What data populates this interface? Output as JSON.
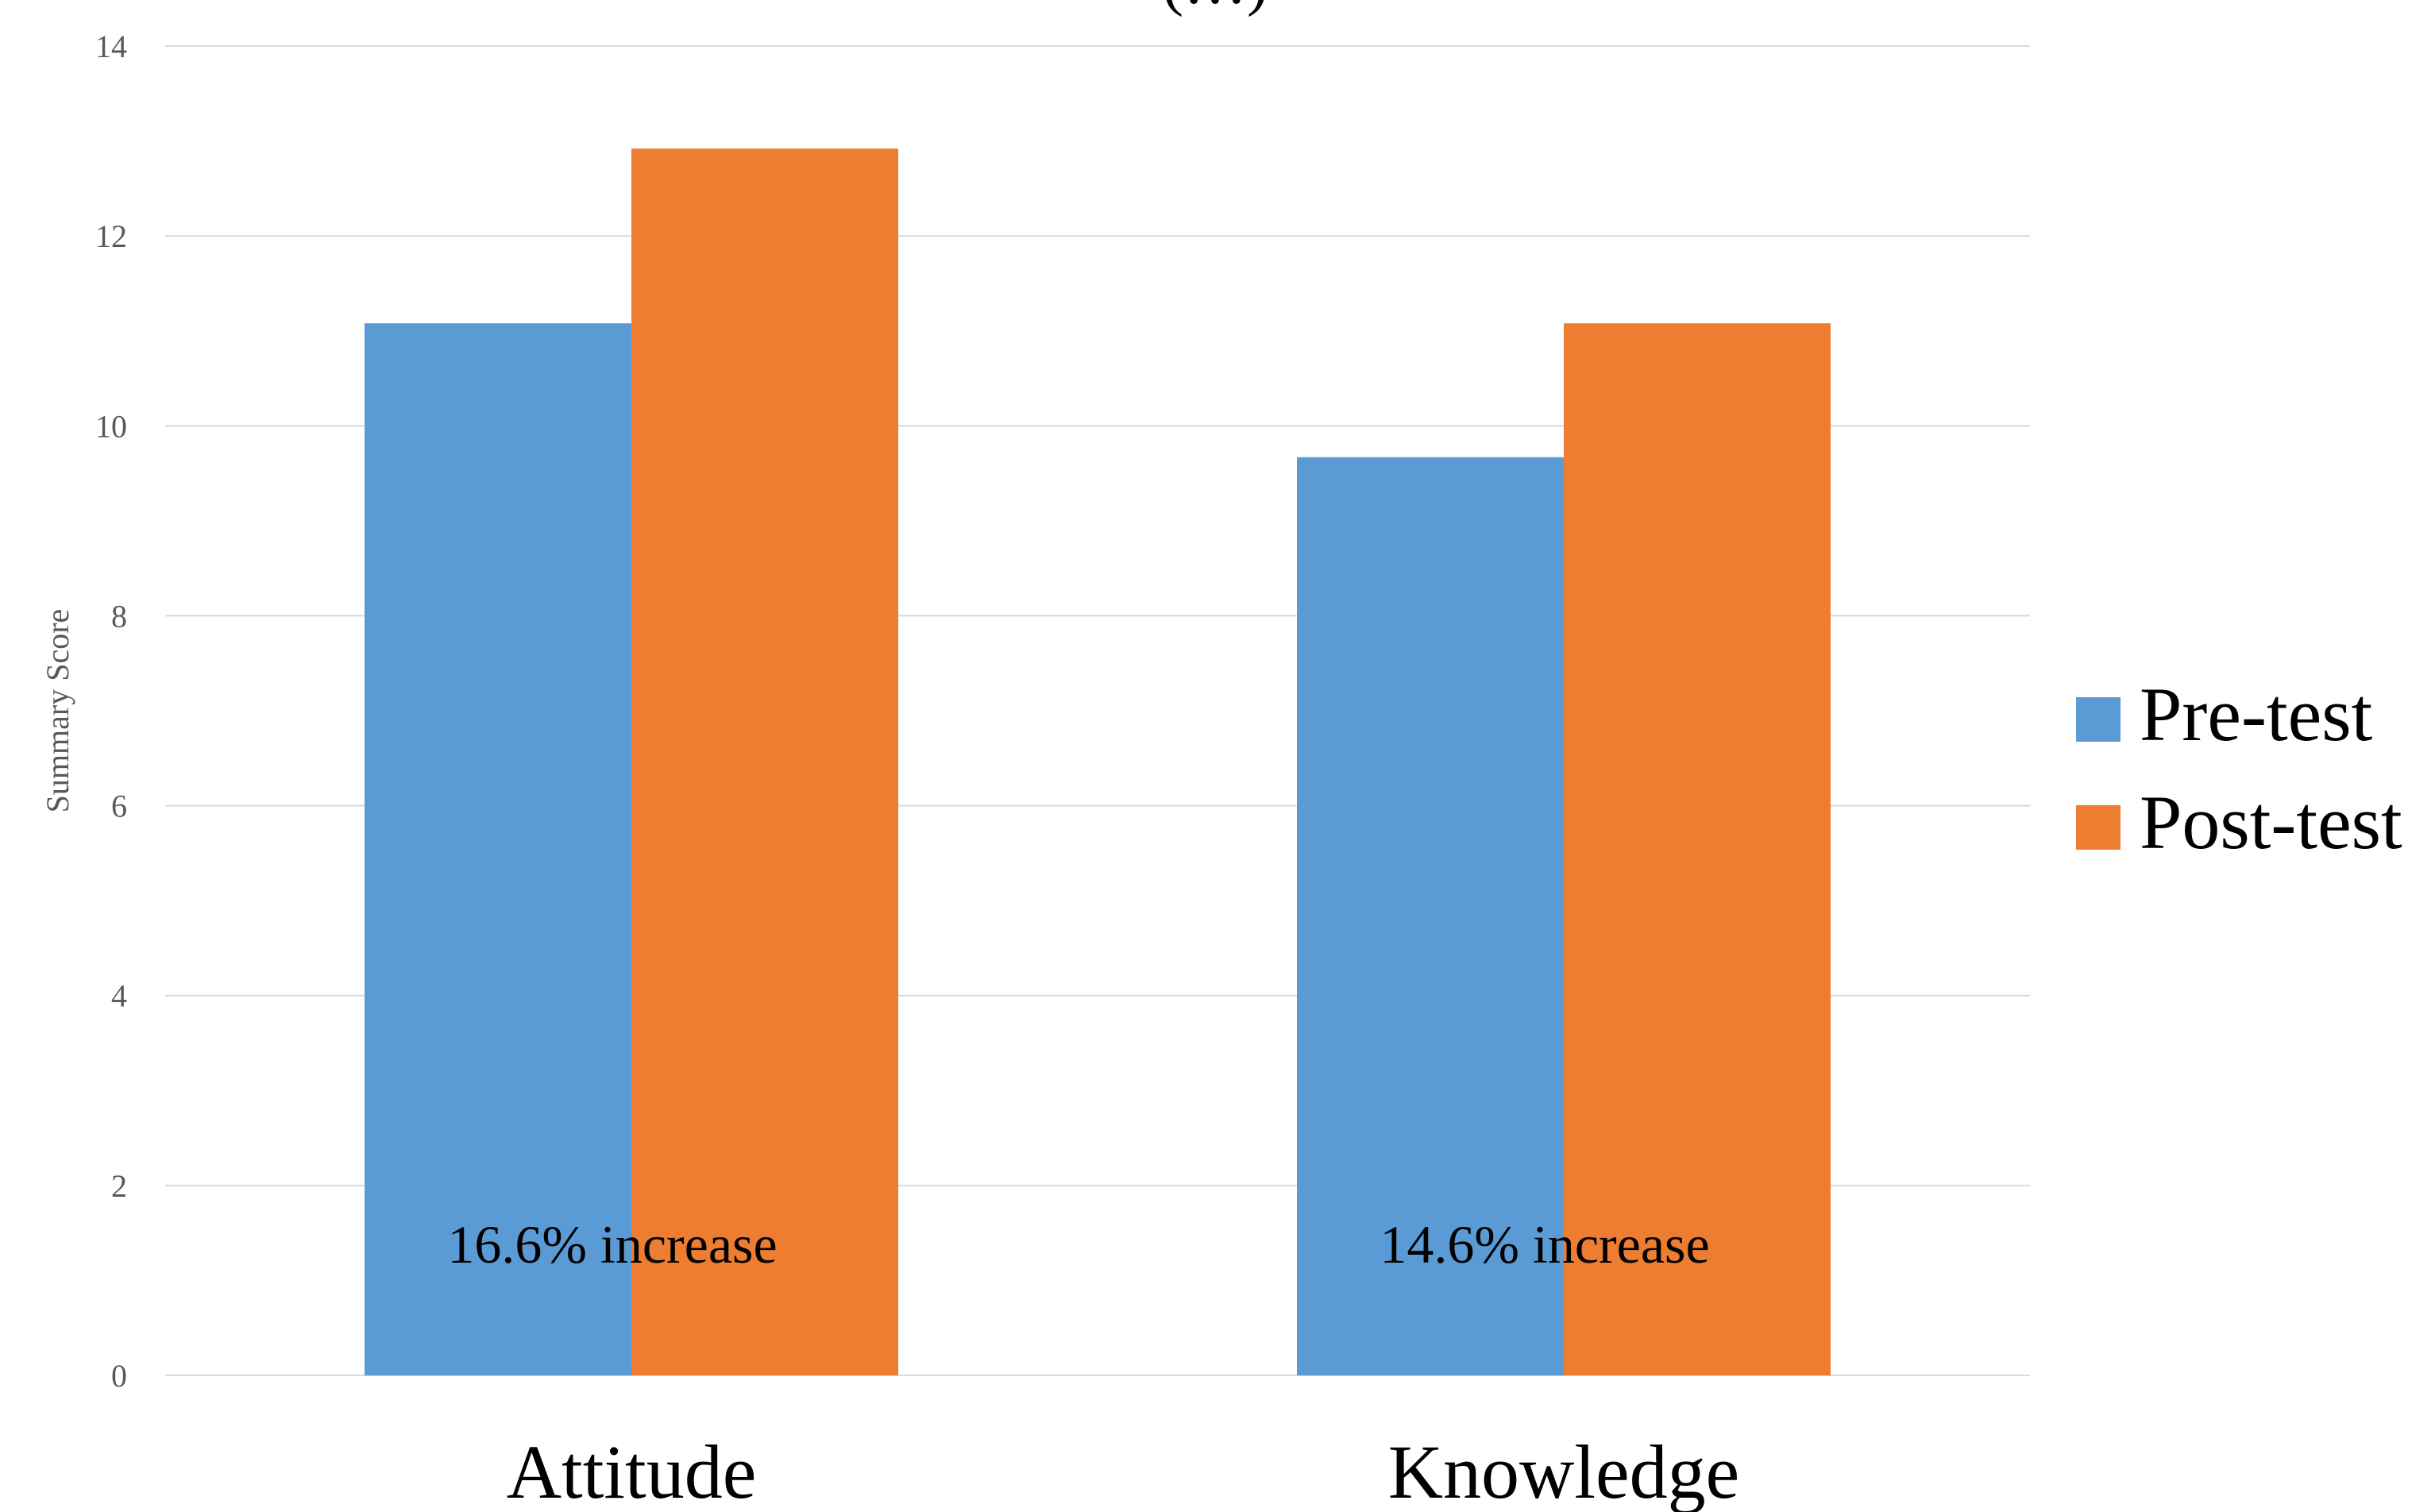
{
  "chart_data": {
    "type": "bar",
    "title": "(…)",
    "ylabel": "Summary Score",
    "xlabel": "",
    "ylim": [
      0,
      14
    ],
    "yticks": [
      0,
      2,
      4,
      6,
      8,
      10,
      12,
      14
    ],
    "grid": true,
    "legend_position": "right",
    "categories": [
      "Attitude",
      "Knowledge"
    ],
    "series": [
      {
        "name": "Pre-test",
        "color": "#5b9bd5",
        "values": [
          11.08,
          9.67
        ]
      },
      {
        "name": "Post-test",
        "color": "#ed7d31",
        "values": [
          12.92,
          11.08
        ]
      }
    ],
    "annotations": [
      "16.6% increase",
      "14.6% increase"
    ]
  }
}
